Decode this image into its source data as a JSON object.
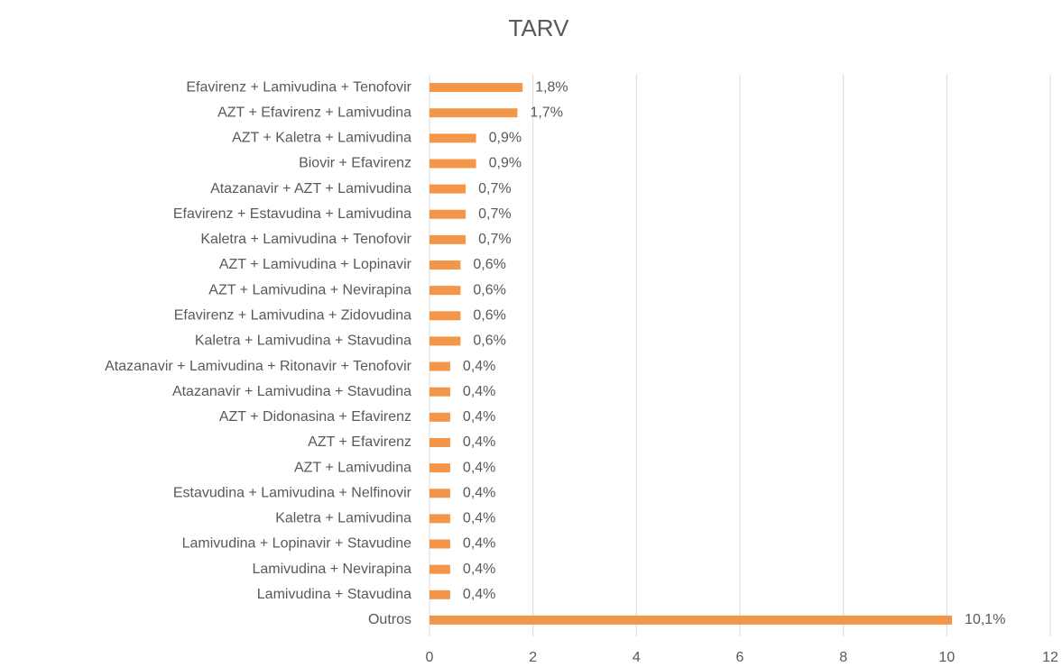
{
  "chart_data": {
    "type": "barh",
    "title": "TARV",
    "categories": [
      "Efavirenz + Lamivudina + Tenofovir",
      "AZT + Efavirenz + Lamivudina",
      "AZT + Kaletra + Lamivudina",
      "Biovir + Efavirenz",
      "Atazanavir + AZT + Lamivudina",
      "Efavirenz + Estavudina + Lamivudina",
      "Kaletra + Lamivudina + Tenofovir",
      "AZT + Lamivudina + Lopinavir",
      "AZT + Lamivudina + Nevirapina",
      "Efavirenz + Lamivudina + Zidovudina",
      "Kaletra + Lamivudina + Stavudina",
      "Atazanavir + Lamivudina + Ritonavir + Tenofovir",
      "Atazanavir + Lamivudina + Stavudina",
      "AZT + Didonasina + Efavirenz",
      "AZT + Efavirenz",
      "AZT + Lamivudina",
      "Estavudina + Lamivudina + Nelfinovir",
      "Kaletra + Lamivudina",
      "Lamivudina + Lopinavir + Stavudine",
      "Lamivudina + Nevirapina",
      "Lamivudina + Stavudina",
      "Outros"
    ],
    "values": [
      1.8,
      1.7,
      0.9,
      0.9,
      0.7,
      0.7,
      0.7,
      0.6,
      0.6,
      0.6,
      0.6,
      0.4,
      0.4,
      0.4,
      0.4,
      0.4,
      0.4,
      0.4,
      0.4,
      0.4,
      0.4,
      10.1
    ],
    "value_labels": [
      "1,8%",
      "1,7%",
      "0,9%",
      "0,9%",
      "0,7%",
      "0,7%",
      "0,7%",
      "0,6%",
      "0,6%",
      "0,6%",
      "0,6%",
      "0,4%",
      "0,4%",
      "0,4%",
      "0,4%",
      "0,4%",
      "0,4%",
      "0,4%",
      "0,4%",
      "0,4%",
      "0,4%",
      "10,1%"
    ],
    "color": "#f4964a",
    "xlim": [
      0,
      12
    ],
    "xticks": [
      0,
      2,
      4,
      6,
      8,
      10,
      12
    ],
    "grid": true
  }
}
